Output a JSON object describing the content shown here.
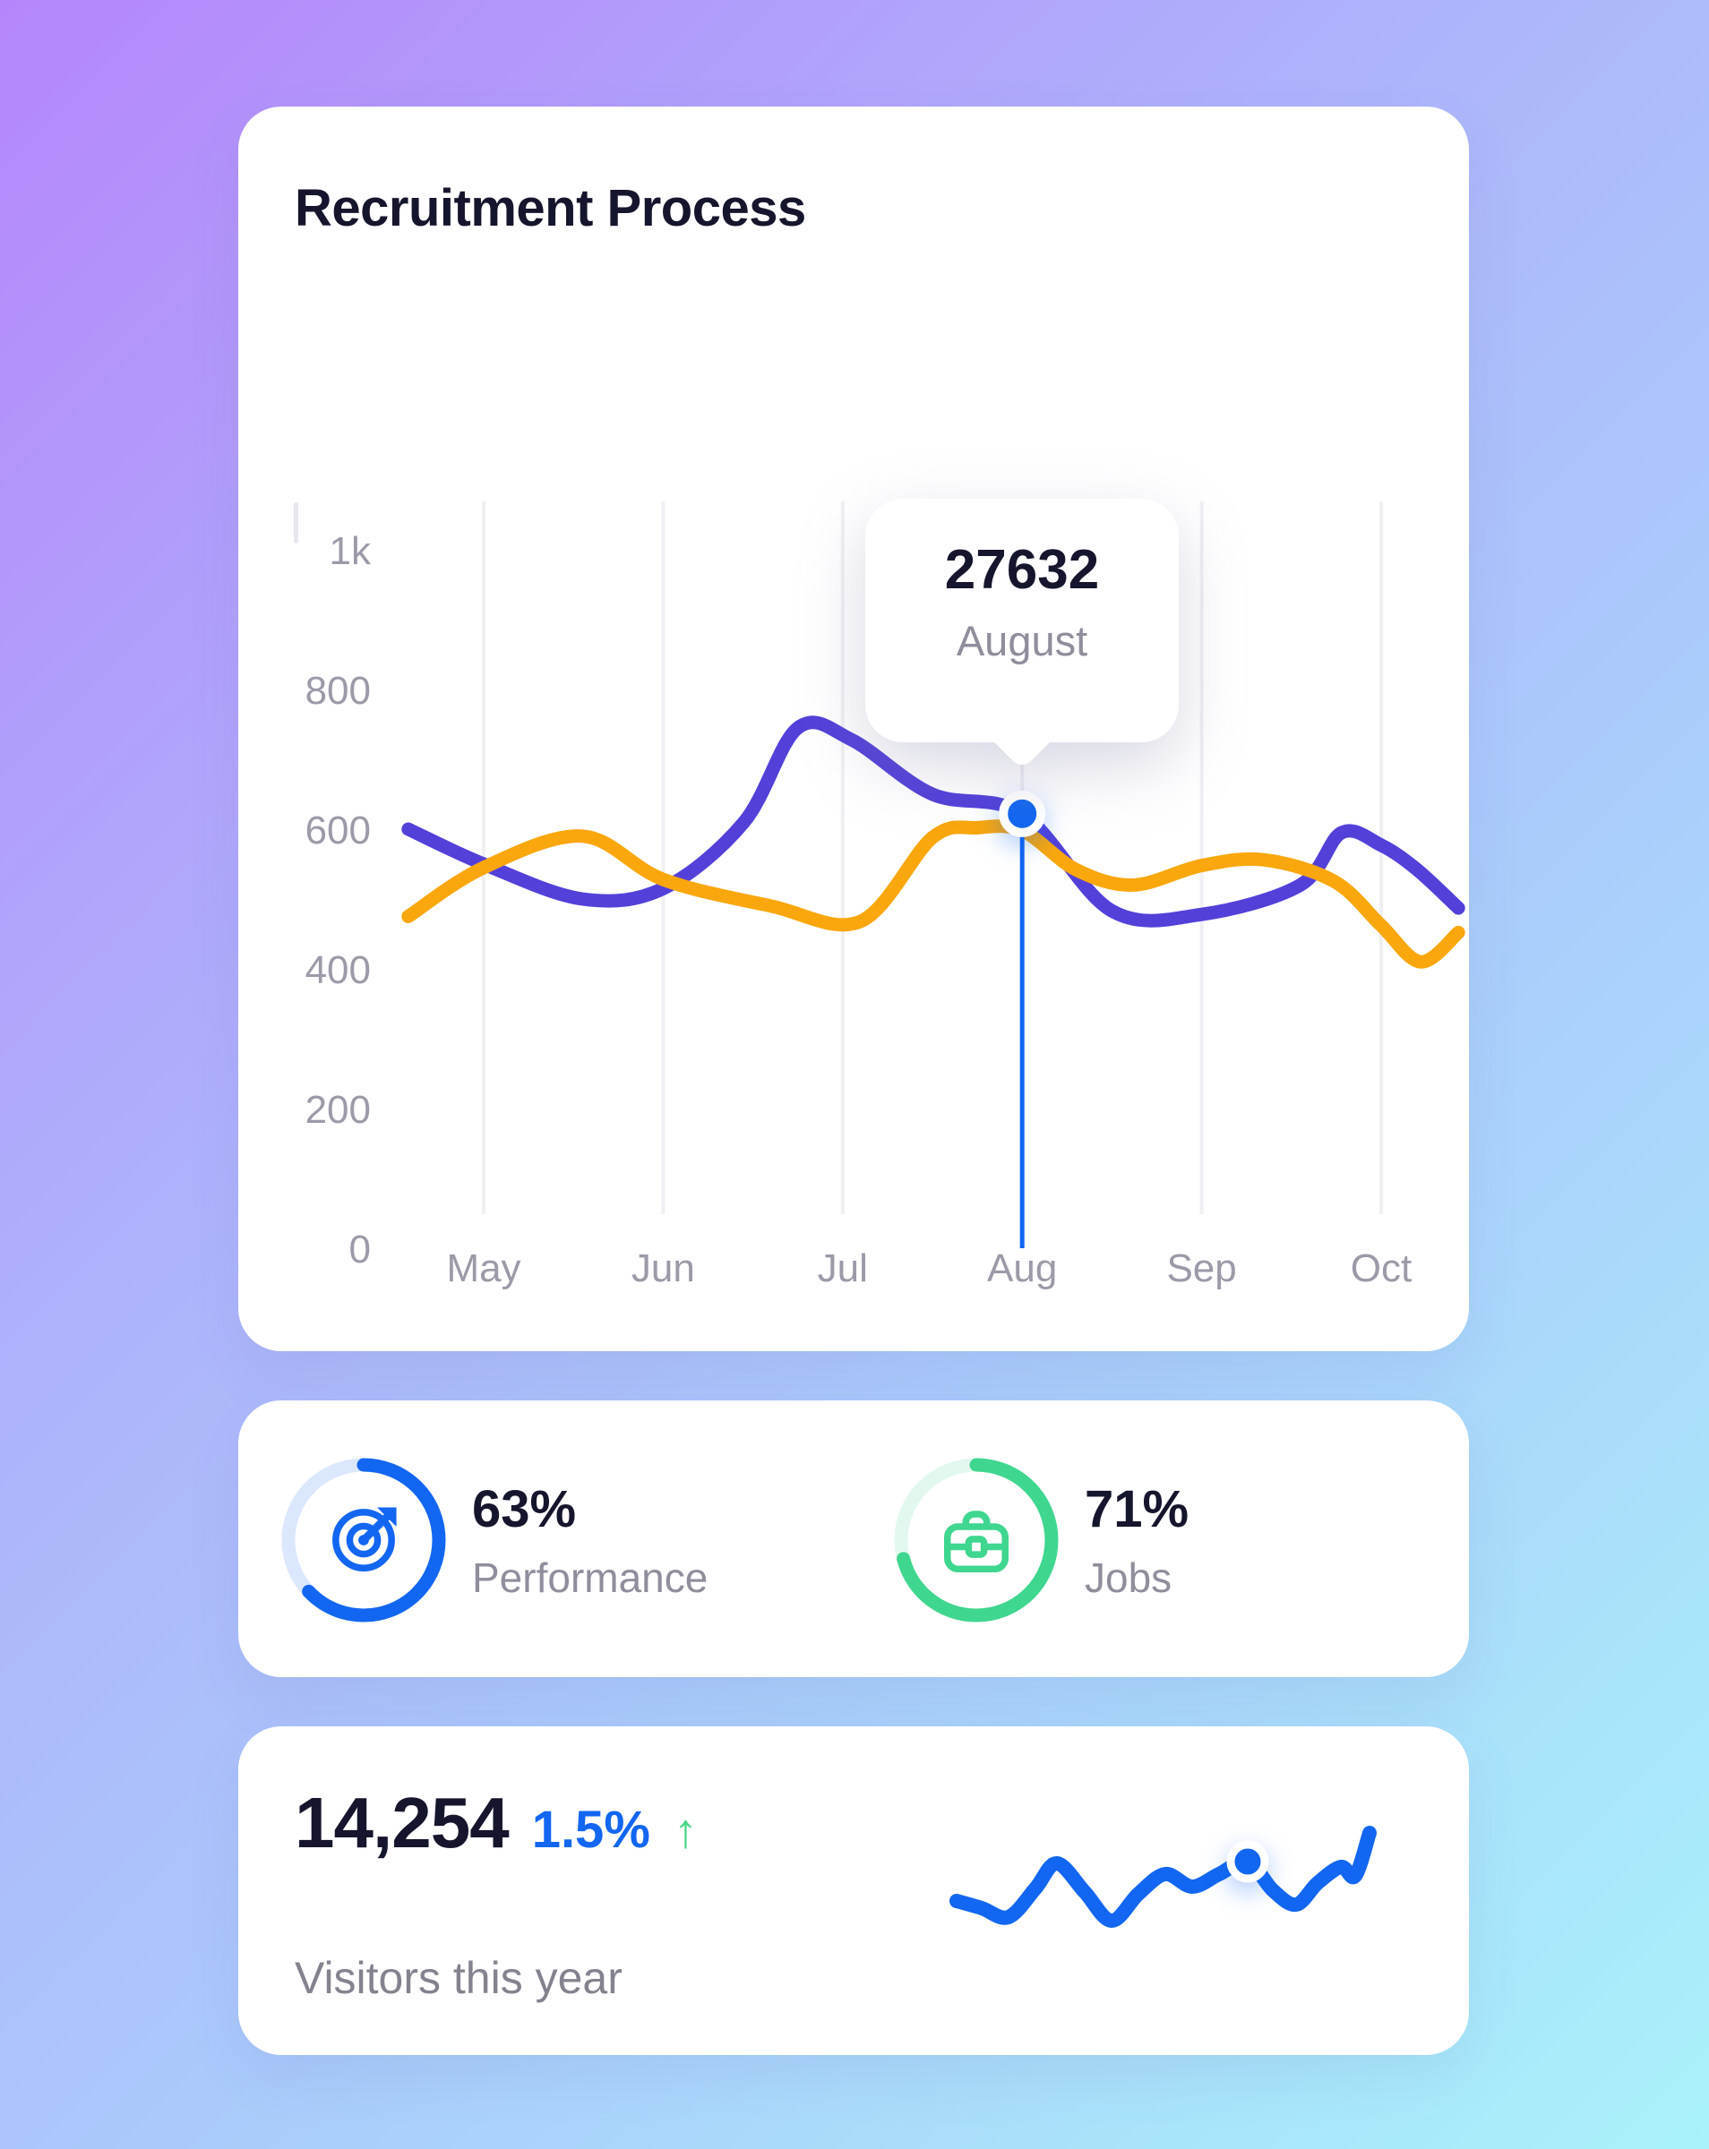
{
  "colors": {
    "accent_blue": "#1266f1",
    "line_purple": "#5340d9",
    "line_orange": "#f9a70d",
    "green": "#3fd68f",
    "arrow_green": "#4cd787",
    "dark_text": "#15152d",
    "muted_text": "#8e8e9c",
    "axis_text": "#9a9aa8",
    "grid": "#efeff4",
    "track_blue": "#dbe7fd",
    "track_green": "#e2f8ee",
    "card_bg": "#ffffff",
    "bg_gradient": [
      "#b586fb",
      "#aeb2fb",
      "#aad0fb",
      "#a9f2fa"
    ]
  },
  "recruitment": {
    "title": "Recruitment Process",
    "tooltip": {
      "value": "27632",
      "label": "August"
    }
  },
  "performance": {
    "percent": "63%",
    "label": "Performance"
  },
  "jobs": {
    "percent": "71%",
    "label": "Jobs"
  },
  "visitors": {
    "count": "14,254",
    "change": "1.5%",
    "trend_arrow": "↑",
    "label": "Visitors this year"
  },
  "chart_data": [
    {
      "type": "line",
      "title": "Recruitment Process",
      "x_labels": [
        "May",
        "Jun",
        "Jul",
        "Aug",
        "Sep",
        "Oct"
      ],
      "y_ticks": [
        {
          "label": "1k",
          "value": 1000
        },
        {
          "label": "800",
          "value": 800
        },
        {
          "label": "600",
          "value": 600
        },
        {
          "label": "400",
          "value": 400
        },
        {
          "label": "200",
          "value": 200
        },
        {
          "label": "0",
          "value": 0
        }
      ],
      "ylim": [
        0,
        1000
      ],
      "grid": "vertical",
      "legend": "none",
      "series": [
        {
          "name": "purple-series",
          "color": "#5340d9",
          "points": [
            [
              -0.42,
              600
            ],
            [
              0,
              550
            ],
            [
              0.55,
              500
            ],
            [
              1,
              515
            ],
            [
              1.45,
              610
            ],
            [
              1.75,
              745
            ],
            [
              2.05,
              728
            ],
            [
              2.5,
              650
            ],
            [
              3,
              622
            ],
            [
              3.5,
              483
            ],
            [
              4,
              478
            ],
            [
              4.55,
              520
            ],
            [
              4.78,
              595
            ],
            [
              5,
              577
            ],
            [
              5.2,
              542
            ],
            [
              5.43,
              487
            ]
          ]
        },
        {
          "name": "orange-series",
          "color": "#f9a70d",
          "points": [
            [
              -0.42,
              475
            ],
            [
              0,
              545
            ],
            [
              0.55,
              590
            ],
            [
              1,
              528
            ],
            [
              1.6,
              490
            ],
            [
              2.1,
              468
            ],
            [
              2.5,
              588
            ],
            [
              2.75,
              602
            ],
            [
              3,
              598
            ],
            [
              3.3,
              542
            ],
            [
              3.62,
              520
            ],
            [
              4,
              548
            ],
            [
              4.35,
              556
            ],
            [
              4.74,
              525
            ],
            [
              5,
              462
            ],
            [
              5.22,
              410
            ],
            [
              5.43,
              452
            ]
          ]
        }
      ],
      "active_point": {
        "x": 3,
        "y": 622,
        "x_label": "August",
        "tooltip_value": "27632"
      }
    },
    {
      "type": "ring",
      "name": "performance-ring",
      "percent": 63,
      "label": "Performance",
      "color": "#1266f1",
      "track": "#dbe7fd",
      "icon": "target-icon"
    },
    {
      "type": "ring",
      "name": "jobs-ring",
      "percent": 71,
      "label": "Jobs",
      "color": "#3fd68f",
      "track": "#e2f8ee",
      "icon": "briefcase-icon"
    },
    {
      "type": "line",
      "name": "visitors-sparkline",
      "color": "#1266f1",
      "dot_index": 11,
      "points": [
        [
          2,
          95
        ],
        [
          30,
          103
        ],
        [
          60,
          113
        ],
        [
          90,
          81
        ],
        [
          114,
          53
        ],
        [
          145,
          85
        ],
        [
          175,
          117
        ],
        [
          205,
          87
        ],
        [
          235,
          65
        ],
        [
          265,
          79
        ],
        [
          295,
          65
        ],
        [
          327,
          51
        ],
        [
          355,
          83
        ],
        [
          381,
          99
        ],
        [
          405,
          75
        ],
        [
          431,
          57
        ],
        [
          447,
          67
        ],
        [
          463,
          19
        ]
      ]
    }
  ]
}
